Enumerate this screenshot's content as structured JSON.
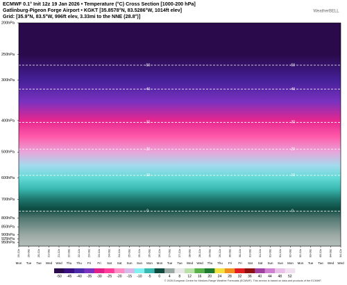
{
  "header": {
    "line1": "ECMWF 0.1° Init 12z 19 Jan 2026 • Temperature (°C) Cross Section [1000-200 hPa]",
    "line2": "Gatlinburg-Pigeon Forge Airport • KGKT [35.8578°N, 83.5286°W, 1014ft elev]",
    "line3": "Grid: [35.9°N, 83.5°W, 996ft elev, 3.33mi to the NNE (28.8°)]",
    "logo": "WeatherBELL"
  },
  "chart_data": {
    "type": "heatmap",
    "log_y": true,
    "ylim": [
      200,
      975
    ],
    "yticks": [
      {
        "value": 200,
        "label": "200hPa"
      },
      {
        "value": 250,
        "label": "250hPa"
      },
      {
        "value": 300,
        "label": "300hPa"
      },
      {
        "value": 400,
        "label": "400hPa"
      },
      {
        "value": 500,
        "label": "500hPa"
      },
      {
        "value": 600,
        "label": "600hPa"
      },
      {
        "value": 700,
        "label": "700hPa"
      },
      {
        "value": 800,
        "label": "800hPa"
      },
      {
        "value": 850,
        "label": "850hPa"
      },
      {
        "value": 900,
        "label": "900hPa"
      },
      {
        "value": 925,
        "label": "925hPa"
      },
      {
        "value": 950,
        "label": "950hPa"
      }
    ],
    "dates": [
      "19-12z",
      "20-00z",
      "20-12z",
      "21-00z",
      "21-12z",
      "22-00z",
      "22-12z",
      "23-00z",
      "23-12z",
      "24-00z",
      "24-12z",
      "25-00z",
      "25-12z",
      "26-00z",
      "26-12z",
      "27-00z",
      "27-12z",
      "28-00z",
      "28-12z",
      "29-00z",
      "29-12z",
      "30-00z",
      "30-12z",
      "31-00z",
      "31-12z",
      "01-00z",
      "01-12z",
      "02-00z",
      "02-12z",
      "03-00z",
      "03-12z",
      "04-00z",
      "04-12z"
    ],
    "categories": [
      "Mon",
      "Tue",
      "Tue",
      "Wed",
      "Wed",
      "Thu",
      "Thu",
      "Fri",
      "Fri",
      "Sat",
      "Sat",
      "Sun",
      "Sun",
      "Mon",
      "Mon",
      "Tue",
      "Tue",
      "Wed",
      "Wed",
      "Thu",
      "Thu",
      "Fri",
      "Fri",
      "Sat",
      "Sat",
      "Sun",
      "Sun",
      "Mon",
      "Mon",
      "Tue",
      "Tue",
      "Wed",
      "Wed"
    ],
    "profile": {
      "pressure": [
        200,
        250,
        300,
        350,
        400,
        450,
        500,
        550,
        600,
        650,
        700,
        750,
        800,
        850,
        900,
        950,
        975
      ],
      "temperature": [
        -52,
        -50,
        -42,
        -35,
        -29,
        -23,
        -17,
        -12,
        -8,
        -5,
        -2,
        0,
        2,
        3,
        4,
        5,
        5
      ]
    },
    "contours": [
      {
        "label": "-50",
        "p": 270
      },
      {
        "label": "-40",
        "p": 320
      },
      {
        "label": "-30",
        "p": 405
      },
      {
        "label": "-20",
        "p": 490
      },
      {
        "label": "-10",
        "p": 590
      },
      {
        "label": "0",
        "p": 760
      }
    ],
    "colorbar": {
      "ticks": [
        -50,
        -45,
        -40,
        -35,
        -30,
        -25,
        -20,
        -15,
        -10,
        -5,
        0,
        4,
        8,
        12,
        16,
        20,
        24,
        28,
        32,
        36,
        40,
        44,
        48,
        52
      ],
      "colors": [
        "#2a0a4a",
        "#3a1080",
        "#4b2aa8",
        "#7a32c0",
        "#e0208a",
        "#ff3c9a",
        "#ff8cc4",
        "#d8b8e8",
        "#80f0f0",
        "#38b8b0",
        "#0d4a40",
        "#9aa8a4",
        "#e8e8e8",
        "#b8e0a8",
        "#58b048",
        "#1e7a30",
        "#f0e040",
        "#f09020",
        "#e02020",
        "#901010",
        "#a040a0",
        "#d080d0",
        "#e8c0e8",
        "#f0e0f0"
      ]
    },
    "footer": "© 2026 European Centre for Medium-Range Weather Forecasts (ECMWF). This service is based on data and products of the ECMWF."
  }
}
